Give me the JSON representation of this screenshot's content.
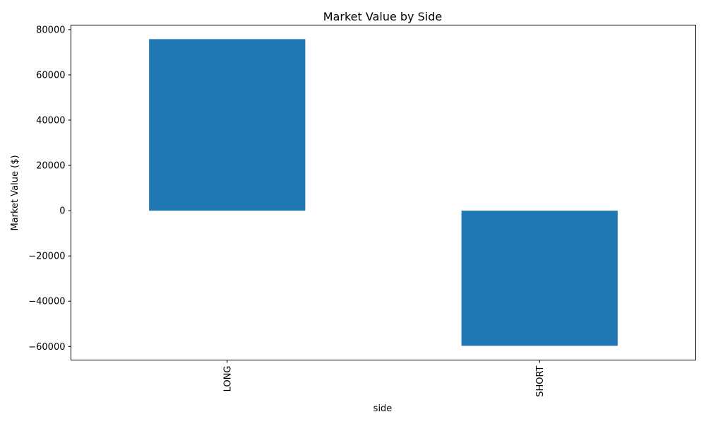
{
  "chart_data": {
    "type": "bar",
    "title": "Market Value by Side",
    "xlabel": "side",
    "ylabel": "Market Value ($)",
    "categories": [
      "LONG",
      "SHORT"
    ],
    "values": [
      75800,
      -59700
    ],
    "ylim": [
      -66000,
      82000
    ],
    "yticks": [
      -60000,
      -40000,
      -20000,
      0,
      20000,
      40000,
      60000,
      80000
    ],
    "ytick_labels": [
      "−60000",
      "−40000",
      "−20000",
      "0",
      "20000",
      "40000",
      "60000",
      "80000"
    ],
    "bar_color": "#1f77b4",
    "grid": false,
    "legend": "none"
  }
}
